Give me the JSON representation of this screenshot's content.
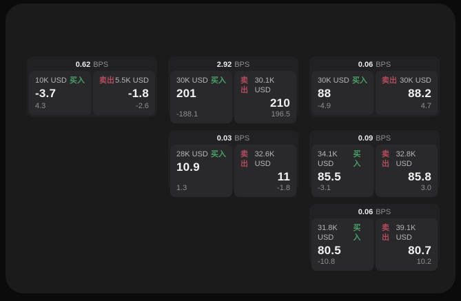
{
  "panel": {
    "background": "#1b1b1c",
    "page_background": "#0b0b0b"
  },
  "colors": {
    "card_bg": "#212123",
    "tile_bg": "#29292b",
    "buy_accent": "#4a9e66",
    "sell_accent": "#b04b5c",
    "primary_text": "#f2f2f3",
    "muted_text": "#8f8f91"
  },
  "cards": [
    {
      "col": 1,
      "row": 1,
      "bps": "0.62",
      "unit": "BPS",
      "buy": {
        "label": "买入",
        "size": "10K USD",
        "value": "-3.7",
        "delta": "4.3"
      },
      "sell": {
        "label": "卖出",
        "size": "5.5K USD",
        "value": "-1.8",
        "delta": "-2.6"
      }
    },
    {
      "col": 2,
      "row": 1,
      "bps": "2.92",
      "unit": "BPS",
      "buy": {
        "label": "买入",
        "size": "30K USD",
        "value": "201",
        "delta": "-188.1"
      },
      "sell": {
        "label": "卖出",
        "size": "30.1K USD",
        "value": "210",
        "delta": "196.5"
      }
    },
    {
      "col": 3,
      "row": 1,
      "bps": "0.06",
      "unit": "BPS",
      "buy": {
        "label": "买入",
        "size": "30K USD",
        "value": "88",
        "delta": "-4.9"
      },
      "sell": {
        "label": "卖出",
        "size": "30K USD",
        "value": "88.2",
        "delta": "4.7"
      }
    },
    {
      "col": 2,
      "row": 2,
      "bps": "0.03",
      "unit": "BPS",
      "buy": {
        "label": "买入",
        "size": "28K USD",
        "value": "10.9",
        "delta": "1.3"
      },
      "sell": {
        "label": "卖出",
        "size": "32.6K USD",
        "value": "11",
        "delta": "-1.8"
      }
    },
    {
      "col": 3,
      "row": 2,
      "bps": "0.09",
      "unit": "BPS",
      "buy": {
        "label": "买入",
        "size": "34.1K USD",
        "value": "85.5",
        "delta": "-3.1"
      },
      "sell": {
        "label": "卖出",
        "size": "32.8K USD",
        "value": "85.8",
        "delta": "3.0"
      }
    },
    {
      "col": 3,
      "row": 3,
      "bps": "0.06",
      "unit": "BPS",
      "buy": {
        "label": "买入",
        "size": "31.8K USD",
        "value": "80.5",
        "delta": "-10.8"
      },
      "sell": {
        "label": "卖出",
        "size": "39.1K USD",
        "value": "80.7",
        "delta": "10.2"
      }
    }
  ]
}
